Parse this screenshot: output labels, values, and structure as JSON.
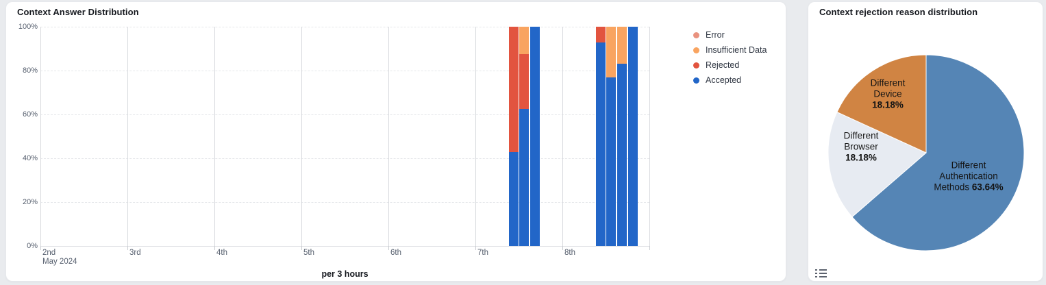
{
  "left_panel": {
    "title": "Context Answer Distribution",
    "x_axis_footer": "per 3 hours"
  },
  "right_panel": {
    "title": "Context rejection reason distribution",
    "labels": {
      "device": {
        "name": "Different\nDevice\n",
        "pct": "18.18%"
      },
      "browser": {
        "name": "Different\nBrowser\n",
        "pct": "18.18%"
      },
      "auth": {
        "name": "Different\nAuthentication\nMethods ",
        "pct": "63.64%"
      }
    }
  },
  "chart_data": [
    {
      "type": "bar",
      "title": "Context Answer Distribution",
      "stacking": "percent",
      "interval": "per 3 hours",
      "xlabel": "per 3 hours",
      "ylabel": "",
      "ylim": [
        0,
        100
      ],
      "y_ticks": [
        "0%",
        "20%",
        "40%",
        "60%",
        "80%",
        "100%"
      ],
      "x_ticks": [
        "2nd",
        "3rd",
        "4th",
        "5th",
        "6th",
        "7th",
        "8th"
      ],
      "x_start_sublabel": "May 2024",
      "grid": {
        "horizontal": "dashed",
        "vertical": "solid"
      },
      "legend_position": "right",
      "series_legend": [
        {
          "name": "Error",
          "color": "#e9927f"
        },
        {
          "name": "Insufficient Data",
          "color": "#f9a460"
        },
        {
          "name": "Rejected",
          "color": "#e2543f"
        },
        {
          "name": "Accepted",
          "color": "#2266c8"
        }
      ],
      "stack_order_bottom_to_top": [
        "Accepted",
        "Rejected",
        "Insufficient Data",
        "Error"
      ],
      "slots_per_day": 8,
      "bars": [
        {
          "day": "7th",
          "day_index": 5,
          "slot": 3,
          "time": "09:00",
          "segments": {
            "Accepted": 42.9,
            "Rejected": 57.1
          }
        },
        {
          "day": "7th",
          "day_index": 5,
          "slot": 4,
          "time": "12:00",
          "segments": {
            "Accepted": 62.5,
            "Rejected": 25.0,
            "Insufficient Data": 12.5
          }
        },
        {
          "day": "7th",
          "day_index": 5,
          "slot": 5,
          "time": "15:00",
          "segments": {
            "Accepted": 100
          }
        },
        {
          "day": "8th",
          "day_index": 6,
          "slot": 3,
          "time": "09:00",
          "segments": {
            "Accepted": 92.9,
            "Rejected": 7.1
          }
        },
        {
          "day": "8th",
          "day_index": 6,
          "slot": 4,
          "time": "12:00",
          "segments": {
            "Accepted": 77.0,
            "Insufficient Data": 23.0
          }
        },
        {
          "day": "8th",
          "day_index": 6,
          "slot": 5,
          "time": "15:00",
          "segments": {
            "Accepted": 83.0,
            "Insufficient Data": 17.0
          }
        },
        {
          "day": "8th",
          "day_index": 6,
          "slot": 6,
          "time": "18:00",
          "segments": {
            "Accepted": 100
          }
        }
      ]
    },
    {
      "type": "pie",
      "title": "Context rejection reason distribution",
      "start_angle_deg": -90,
      "direction": "clockwise",
      "slices": [
        {
          "label": "Different Authentication Methods",
          "value": 63.64,
          "color": "#5585b5"
        },
        {
          "label": "Different Browser",
          "value": 18.18,
          "color": "#e7ebf2"
        },
        {
          "label": "Different Device",
          "value": 18.18,
          "color": "#d08443"
        }
      ]
    }
  ]
}
